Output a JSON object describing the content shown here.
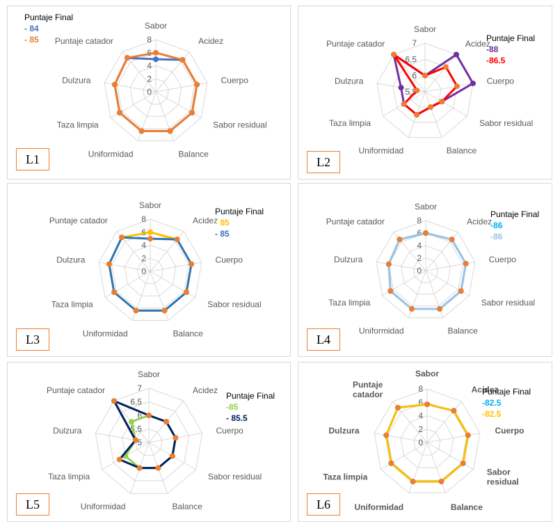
{
  "chart_data": [
    {
      "id": "L1",
      "type": "radar",
      "label": "L1",
      "categories": [
        "Sabor",
        "Acidez",
        "Cuerpo",
        "Sabor residual",
        "Balance",
        "Uniformidad",
        "Taza limpia",
        "Dulzura",
        "Puntaje catador"
      ],
      "ticks": [
        "0",
        "2",
        "4",
        "6",
        "8"
      ],
      "rmin": 0,
      "rmax": 8,
      "legend_title": "Puntaje Final",
      "title_bold": false,
      "series": [
        {
          "name": "- 84",
          "color": "#4472c4",
          "values": [
            5,
            6.4,
            6.4,
            6.4,
            6.4,
            6.4,
            6.4,
            6.4,
            6.8
          ]
        },
        {
          "name": "- 85",
          "color": "#ed7d31",
          "values": [
            6,
            6.4,
            6.4,
            6.4,
            6.4,
            6.4,
            6.4,
            6.4,
            6.8
          ]
        }
      ]
    },
    {
      "id": "L2",
      "type": "radar",
      "label": "L2",
      "categories": [
        "Sabor",
        "Acidez",
        "Cuerpo",
        "Sabor residual",
        "Balance",
        "Uniformidad",
        "Taza limpia",
        "Dulzura",
        "Puntaje catador"
      ],
      "ticks": [
        "5,5",
        "6",
        "6,5",
        "7"
      ],
      "rmin": 5.5,
      "rmax": 7,
      "legend_title": "Puntaje Final",
      "title_bold": false,
      "series": [
        {
          "name": "-88",
          "color": "#7030a0",
          "values": [
            6,
            7,
            7,
            6.1,
            6,
            6.25,
            6.25,
            6.25,
            7
          ]
        },
        {
          "name": "-86.5",
          "color": "#ff0000",
          "values": [
            6,
            6.5,
            6.5,
            6.1,
            6,
            6.25,
            6.25,
            5.75,
            7
          ]
        }
      ]
    },
    {
      "id": "L3",
      "type": "radar",
      "label": "L3",
      "categories": [
        "Sabor",
        "Acidez",
        "Cuerpo",
        "Sabor residual",
        "Balance",
        "Uniformidad",
        "Taza limpia",
        "Dulzura",
        "Puntaje catador"
      ],
      "ticks": [
        "0",
        "2",
        "4",
        "6",
        "8"
      ],
      "rmin": 0,
      "rmax": 8,
      "legend_title": "Puntaje Final",
      "title_bold": false,
      "series": [
        {
          "name": "- 85",
          "color": "#ffc000",
          "values": [
            6,
            6.4,
            6.4,
            6.4,
            6.4,
            6.4,
            6.4,
            6.4,
            6.8
          ]
        },
        {
          "name": "- 85",
          "color": "#2e75b6",
          "values": [
            5,
            6.4,
            6.4,
            6.4,
            6.4,
            6.4,
            6.4,
            6.4,
            6.8
          ]
        }
      ]
    },
    {
      "id": "L4",
      "type": "radar",
      "label": "L4",
      "categories": [
        "Sabor",
        "Acidez",
        "Cuerpo",
        "Sabor residual",
        "Balance",
        "Uniformidad",
        "Taza limpia",
        "Dulzura",
        "Puntaje catador"
      ],
      "ticks": [
        "0",
        "2",
        "4",
        "6",
        "8"
      ],
      "rmin": 0,
      "rmax": 8,
      "legend_title": "Puntaje Final",
      "title_bold": false,
      "series": [
        {
          "name": "-86",
          "color": "#00b0f0",
          "values": [
            6,
            6.5,
            6.5,
            6.5,
            6.5,
            6.5,
            6.5,
            6,
            6.5
          ]
        },
        {
          "name": "-86",
          "color": "#9dc3e6",
          "values": [
            6,
            6.5,
            6.5,
            6.5,
            6.5,
            6.5,
            6.5,
            6,
            6.5
          ]
        }
      ]
    },
    {
      "id": "L5",
      "type": "radar",
      "label": "L5",
      "categories": [
        "Sabor",
        "Acidez",
        "Cuerpo",
        "Sabor residual",
        "Balance",
        "Uniformidad",
        "Taza limpia",
        "Dulzura",
        "Puntaje catador"
      ],
      "ticks": [
        "5",
        "5,5",
        "6",
        "6,5",
        "7"
      ],
      "rmin": 5,
      "rmax": 7,
      "legend_title": "Puntaje Final",
      "title_bold": false,
      "series": [
        {
          "name": "-85",
          "color": "#92d050",
          "values": [
            6,
            6,
            6,
            6,
            6,
            6,
            6,
            5.5,
            6
          ]
        },
        {
          "name": "- 85.5",
          "color": "#002060",
          "values": [
            6,
            6,
            6,
            6,
            6,
            6,
            6.25,
            5.5,
            7
          ]
        }
      ]
    },
    {
      "id": "L6",
      "type": "radar",
      "label": "L6",
      "categories": [
        "Sabor",
        "Acidez",
        "Cuerpo",
        "Sabor\nresidual",
        "Balance",
        "Uniformidad",
        "Taza limpia",
        "Dulzura",
        "Puntaje\ncatador"
      ],
      "ticks": [
        "0",
        "2",
        "4",
        "6",
        "8"
      ],
      "rmin": 0,
      "rmax": 8,
      "legend_title": "Puntaje Final",
      "title_bold": true,
      "series": [
        {
          "name": "-82.5",
          "color": "#00b0f0",
          "values": [
            5.7,
            6.2,
            6.2,
            6.2,
            6.2,
            6.2,
            6.2,
            6.2,
            6.8
          ]
        },
        {
          "name": "-82.5",
          "color": "#ffc000",
          "values": [
            5.7,
            6.2,
            6.2,
            6.2,
            6.2,
            6.2,
            6.2,
            6.2,
            6.8
          ]
        }
      ]
    }
  ]
}
